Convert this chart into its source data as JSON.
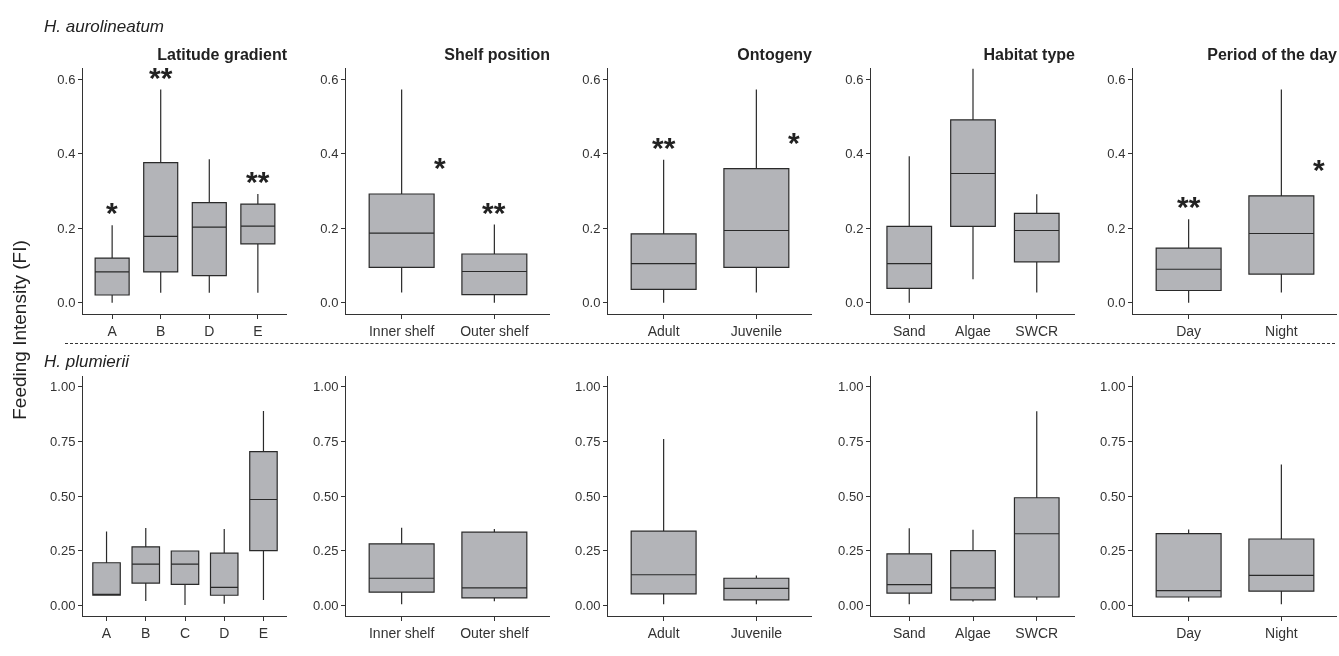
{
  "chart_data": [
    {
      "type": "box",
      "title": "Latitude gradient",
      "ylabel": "Feeding Intensity (FI)",
      "categories": [
        "A",
        "B",
        "D",
        "E"
      ],
      "ylim": [
        -0.03,
        0.63
      ],
      "yticks": [
        {
          "value": 0,
          "label": "0.0"
        },
        {
          "value": 0.2,
          "label": "0.2"
        },
        {
          "value": 0.4,
          "label": "0.4"
        },
        {
          "value": 0.6,
          "label": "0.6"
        }
      ],
      "series": [
        {
          "color": "#b3b4b8",
          "boxes": [
            {
              "low": 0,
              "q1": 0.021,
              "median": 0.083,
              "q3": 0.12,
              "high": 0.208
            },
            {
              "low": 0.027,
              "q1": 0.083,
              "median": 0.178,
              "q3": 0.376,
              "high": 0.572
            },
            {
              "low": 0.027,
              "q1": 0.073,
              "median": 0.203,
              "q3": 0.269,
              "high": 0.385
            },
            {
              "low": 0.027,
              "q1": 0.158,
              "median": 0.206,
              "q3": 0.265,
              "high": 0.292
            }
          ]
        }
      ],
      "annotations": [
        "H. aurolineatum",
        {
          "text": "*",
          "x": "A",
          "y": 0.208
        },
        {
          "text": "**",
          "x": "B",
          "y": 0.572
        },
        {
          "text": "**",
          "x": "E",
          "y": 0.292
        }
      ]
    },
    {
      "type": "box",
      "title": "Shelf position",
      "categories": [
        "Inner shelf",
        "Outer shelf"
      ],
      "ylim": [
        -0.03,
        0.63
      ],
      "yticks": [
        {
          "value": 0,
          "label": "0.0"
        },
        {
          "value": 0.2,
          "label": "0.2"
        },
        {
          "value": 0.4,
          "label": "0.4"
        },
        {
          "value": 0.6,
          "label": "0.6"
        }
      ],
      "series": [
        {
          "color": "#b3b4b8",
          "boxes": [
            {
              "low": 0.028,
              "q1": 0.095,
              "median": 0.187,
              "q3": 0.292,
              "high": 0.572
            },
            {
              "low": 0,
              "q1": 0.022,
              "median": 0.084,
              "q3": 0.131,
              "high": 0.21
            }
          ]
        }
      ],
      "annotations": [
        {
          "text": "*",
          "x": "Inner shelf",
          "y": 0.292
        },
        {
          "text": "**",
          "x": "Outer shelf",
          "y": 0.21
        }
      ]
    },
    {
      "type": "box",
      "title": "Ontogeny",
      "categories": [
        "Adult",
        "Juvenile"
      ],
      "ylim": [
        -0.03,
        0.63
      ],
      "yticks": [
        {
          "value": 0,
          "label": "0.0"
        },
        {
          "value": 0.2,
          "label": "0.2"
        },
        {
          "value": 0.4,
          "label": "0.4"
        },
        {
          "value": 0.6,
          "label": "0.6"
        }
      ],
      "series": [
        {
          "color": "#b3b4b8",
          "boxes": [
            {
              "low": 0,
              "q1": 0.036,
              "median": 0.105,
              "q3": 0.185,
              "high": 0.384
            },
            {
              "low": 0.028,
              "q1": 0.095,
              "median": 0.194,
              "q3": 0.36,
              "high": 0.572
            }
          ]
        }
      ],
      "annotations": [
        {
          "text": "**",
          "x": "Adult",
          "y": 0.384
        },
        {
          "text": "*",
          "x": "Juvenile",
          "y": 0.36
        }
      ]
    },
    {
      "type": "box",
      "title": "Habitat type",
      "categories": [
        "Sand",
        "Algae",
        "SWCR"
      ],
      "ylim": [
        -0.03,
        0.63
      ],
      "yticks": [
        {
          "value": 0,
          "label": "0.0"
        },
        {
          "value": 0.2,
          "label": "0.2"
        },
        {
          "value": 0.4,
          "label": "0.4"
        },
        {
          "value": 0.6,
          "label": "0.6"
        }
      ],
      "series": [
        {
          "color": "#b3b4b8",
          "boxes": [
            {
              "low": 0,
              "q1": 0.039,
              "median": 0.105,
              "q3": 0.205,
              "high": 0.393
            },
            {
              "low": 0.063,
              "q1": 0.205,
              "median": 0.347,
              "q3": 0.491,
              "high": 0.628
            },
            {
              "low": 0.028,
              "q1": 0.11,
              "median": 0.194,
              "q3": 0.24,
              "high": 0.291
            }
          ]
        }
      ]
    },
    {
      "type": "box",
      "title": "Period of the day",
      "categories": [
        "Day",
        "Night"
      ],
      "ylim": [
        -0.03,
        0.63
      ],
      "yticks": [
        {
          "value": 0,
          "label": "0.0"
        },
        {
          "value": 0.2,
          "label": "0.2"
        },
        {
          "value": 0.4,
          "label": "0.4"
        },
        {
          "value": 0.6,
          "label": "0.6"
        }
      ],
      "series": [
        {
          "color": "#b3b4b8",
          "boxes": [
            {
              "low": 0,
              "q1": 0.033,
              "median": 0.09,
              "q3": 0.147,
              "high": 0.224
            },
            {
              "low": 0.028,
              "q1": 0.077,
              "median": 0.186,
              "q3": 0.287,
              "high": 0.572
            }
          ]
        }
      ],
      "annotations": [
        {
          "text": "**",
          "x": "Day",
          "y": 0.224
        },
        {
          "text": "*",
          "x": "Night",
          "y": 0.287
        }
      ]
    },
    {
      "type": "box",
      "categories": [
        "A",
        "B",
        "C",
        "D",
        "E"
      ],
      "ylim": [
        -0.05,
        1.05
      ],
      "yticks": [
        {
          "value": 0,
          "label": "0.00"
        },
        {
          "value": 0.25,
          "label": "0.25"
        },
        {
          "value": 0.5,
          "label": "0.50"
        },
        {
          "value": 0.75,
          "label": "0.75"
        },
        {
          "value": 1,
          "label": "1.00"
        }
      ],
      "series": [
        {
          "color": "#b3b4b8",
          "boxes": [
            {
              "low": 0.043,
              "q1": 0.045,
              "median": 0.048,
              "q3": 0.194,
              "high": 0.337
            },
            {
              "low": 0.019,
              "q1": 0.101,
              "median": 0.188,
              "q3": 0.267,
              "high": 0.353
            },
            {
              "low": 0,
              "q1": 0.095,
              "median": 0.188,
              "q3": 0.248,
              "high": 0.25
            },
            {
              "low": 0.006,
              "q1": 0.045,
              "median": 0.081,
              "q3": 0.238,
              "high": 0.349
            },
            {
              "low": 0.023,
              "q1": 0.25,
              "median": 0.484,
              "q3": 0.703,
              "high": 0.89
            }
          ]
        }
      ],
      "annotations": [
        "H. plumierii"
      ]
    },
    {
      "type": "box",
      "categories": [
        "Inner shelf",
        "Outer shelf"
      ],
      "ylim": [
        -0.05,
        1.05
      ],
      "yticks": [
        {
          "value": 0,
          "label": "0.00"
        },
        {
          "value": 0.25,
          "label": "0.25"
        },
        {
          "value": 0.5,
          "label": "0.50"
        },
        {
          "value": 0.75,
          "label": "0.75"
        },
        {
          "value": 1,
          "label": "1.00"
        }
      ],
      "series": [
        {
          "color": "#b3b4b8",
          "boxes": [
            {
              "low": 0.004,
              "q1": 0.059,
              "median": 0.123,
              "q3": 0.281,
              "high": 0.354
            },
            {
              "low": 0.018,
              "q1": 0.033,
              "median": 0.079,
              "q3": 0.334,
              "high": 0.349
            }
          ]
        }
      ]
    },
    {
      "type": "box",
      "categories": [
        "Adult",
        "Juvenile"
      ],
      "ylim": [
        -0.05,
        1.05
      ],
      "yticks": [
        {
          "value": 0,
          "label": "0.00"
        },
        {
          "value": 0.25,
          "label": "0.25"
        },
        {
          "value": 0.5,
          "label": "0.50"
        },
        {
          "value": 0.75,
          "label": "0.75"
        },
        {
          "value": 1,
          "label": "1.00"
        }
      ],
      "series": [
        {
          "color": "#b3b4b8",
          "boxes": [
            {
              "low": 0.004,
              "q1": 0.051,
              "median": 0.139,
              "q3": 0.339,
              "high": 0.761
            },
            {
              "low": 0.004,
              "q1": 0.024,
              "median": 0.077,
              "q3": 0.123,
              "high": 0.136
            }
          ]
        }
      ]
    },
    {
      "type": "box",
      "categories": [
        "Sand",
        "Algae",
        "SWCR"
      ],
      "ylim": [
        -0.05,
        1.05
      ],
      "yticks": [
        {
          "value": 0,
          "label": "0.00"
        },
        {
          "value": 0.25,
          "label": "0.25"
        },
        {
          "value": 0.5,
          "label": "0.50"
        },
        {
          "value": 0.75,
          "label": "0.75"
        },
        {
          "value": 1,
          "label": "1.00"
        }
      ],
      "series": [
        {
          "color": "#b3b4b8",
          "boxes": [
            {
              "low": 0.004,
              "q1": 0.055,
              "median": 0.094,
              "q3": 0.235,
              "high": 0.352
            },
            {
              "low": 0.017,
              "q1": 0.024,
              "median": 0.079,
              "q3": 0.25,
              "high": 0.345
            },
            {
              "low": 0.024,
              "q1": 0.037,
              "median": 0.327,
              "q3": 0.492,
              "high": 0.888
            }
          ]
        }
      ]
    },
    {
      "type": "box",
      "categories": [
        "Day",
        "Night"
      ],
      "ylim": [
        -0.05,
        1.05
      ],
      "yticks": [
        {
          "value": 0,
          "label": "0.00"
        },
        {
          "value": 0.25,
          "label": "0.25"
        },
        {
          "value": 0.5,
          "label": "0.50"
        },
        {
          "value": 0.75,
          "label": "0.75"
        },
        {
          "value": 1,
          "label": "1.00"
        }
      ],
      "series": [
        {
          "color": "#b3b4b8",
          "boxes": [
            {
              "low": 0.017,
              "q1": 0.037,
              "median": 0.066,
              "q3": 0.328,
              "high": 0.347
            },
            {
              "low": 0.004,
              "q1": 0.064,
              "median": 0.136,
              "q3": 0.303,
              "high": 0.644
            }
          ]
        }
      ]
    }
  ]
}
